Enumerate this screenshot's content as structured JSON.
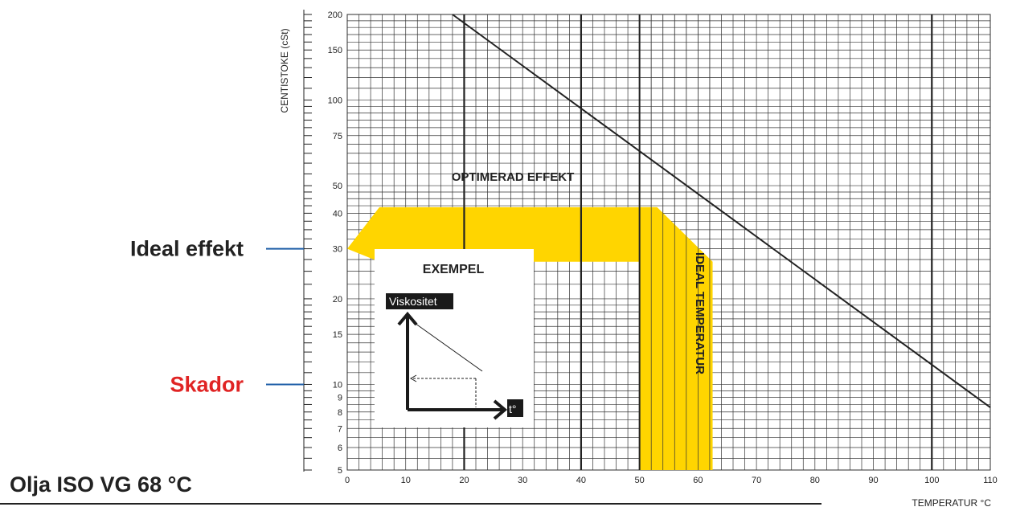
{
  "chart_data": {
    "type": "line",
    "xlabel": "TEMPERATUR °C",
    "ylabel": "CENTISTOKE (cSt)",
    "xlim": [
      0,
      110
    ],
    "ylim": [
      5,
      200
    ],
    "y_scale": "log",
    "grid": true,
    "x_ticks": [
      0,
      10,
      20,
      30,
      40,
      50,
      60,
      70,
      80,
      90,
      100,
      110
    ],
    "x_tick_labels": [
      "0",
      "10",
      "20",
      "30",
      "40",
      "50",
      "60",
      "70",
      "80",
      "90",
      "100",
      "110"
    ],
    "y_ticks": [
      5,
      6,
      7,
      8,
      9,
      10,
      15,
      20,
      30,
      40,
      50,
      75,
      100,
      150,
      200
    ],
    "y_tick_labels": [
      "5",
      "6",
      "7",
      "8",
      "9",
      "10",
      "15",
      "20",
      "30",
      "40",
      "50",
      "75",
      "100",
      "150",
      "200"
    ],
    "series": [
      {
        "x": [
          18,
          110
        ],
        "y": [
          200,
          8.3
        ],
        "color": "#222222"
      }
    ],
    "bands": {
      "optimized": {
        "label": "OPTIMERAD EFFEKT",
        "color": "#ffd500",
        "y_range": [
          27,
          42
        ],
        "x_range": [
          0,
          53
        ]
      },
      "ideal_temp": {
        "label": "IDEAL TEMPERATUR",
        "color": "#ffd500",
        "x_range": [
          50,
          62.5
        ],
        "y_range": [
          5,
          42
        ]
      }
    },
    "annotations": [
      {
        "text": "Ideal effekt",
        "y": 30,
        "color": "#222222",
        "line_color": "#1f5fa8"
      },
      {
        "text": "Skador",
        "y": 10,
        "color": "#e02424",
        "line_color": "#1f5fa8"
      }
    ],
    "example": {
      "title": "EXEMPEL",
      "y_tag": "Viskositet",
      "x_tag": "t°"
    }
  },
  "footer": {
    "title": "Olja ISO VG 68 °C"
  }
}
